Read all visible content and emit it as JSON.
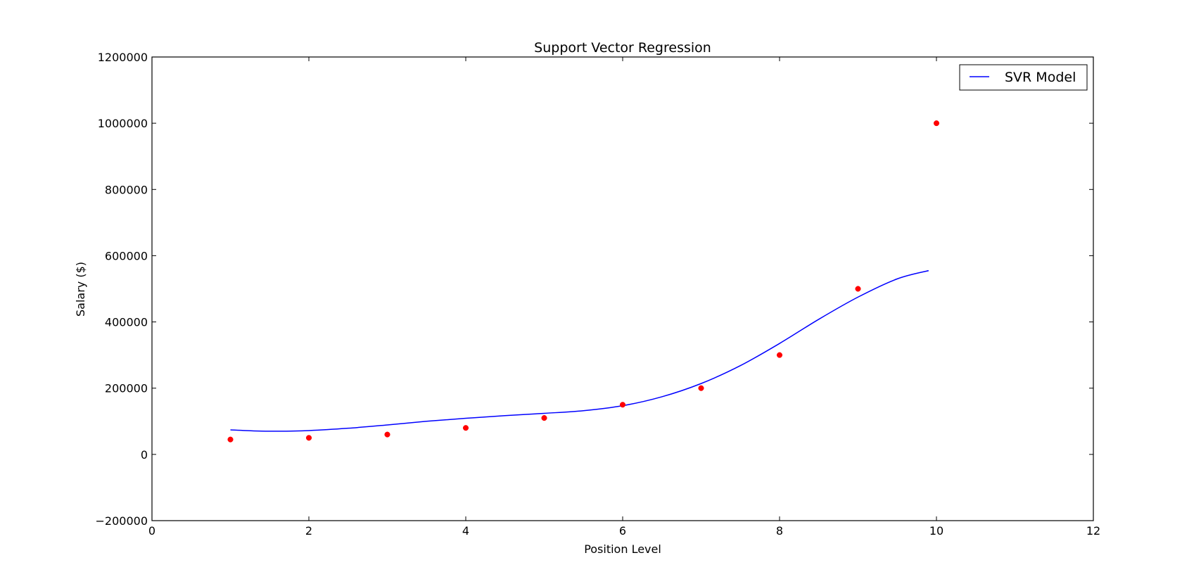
{
  "chart_data": {
    "type": "scatter",
    "title": "Support Vector Regression",
    "xlabel": "Position Level",
    "ylabel": "Salary ($)",
    "xlim": [
      0,
      12
    ],
    "ylim": [
      -200000,
      1200000
    ],
    "x_ticks": [
      0,
      2,
      4,
      6,
      8,
      10,
      12
    ],
    "y_ticks": [
      -200000,
      0,
      200000,
      400000,
      600000,
      800000,
      1000000,
      1200000
    ],
    "x_tick_labels": [
      "0",
      "2",
      "4",
      "6",
      "8",
      "10",
      "12"
    ],
    "y_tick_labels": [
      "−200000",
      "0",
      "200000",
      "400000",
      "600000",
      "800000",
      "1000000",
      "1200000"
    ],
    "grid": false,
    "legend_position": "top-right",
    "series": [
      {
        "name": "",
        "kind": "scatter",
        "color": "#ff0000",
        "x": [
          1,
          2,
          3,
          4,
          5,
          6,
          7,
          8,
          9,
          10
        ],
        "y": [
          45000,
          50000,
          60000,
          80000,
          110000,
          150000,
          200000,
          300000,
          500000,
          1000000
        ]
      },
      {
        "name": "SVR Model",
        "kind": "line",
        "color": "#0000ff",
        "x": [
          1.0,
          1.3,
          1.6,
          2.0,
          2.5,
          3.0,
          3.5,
          4.0,
          4.5,
          5.0,
          5.5,
          6.0,
          6.5,
          7.0,
          7.5,
          8.0,
          8.5,
          9.0,
          9.5,
          9.9
        ],
        "y": [
          74000,
          71000,
          70000,
          72000,
          79000,
          89000,
          100000,
          109000,
          117000,
          124000,
          132000,
          147000,
          174000,
          214000,
          268000,
          335000,
          408000,
          475000,
          530000,
          555000
        ]
      }
    ]
  }
}
